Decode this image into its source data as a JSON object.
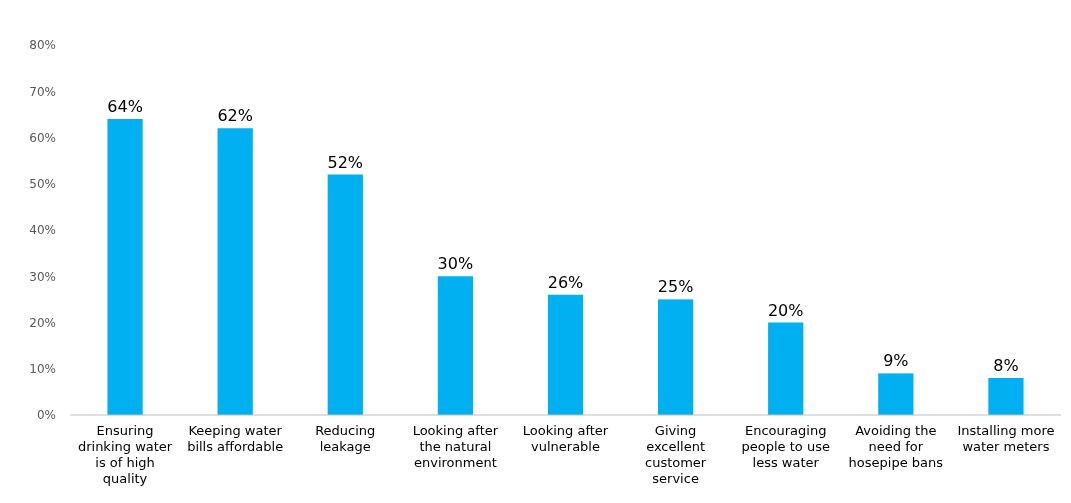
{
  "chart_data": {
    "type": "bar",
    "categories": [
      "Ensuring drinking water is of high quality",
      "Keeping water bills affordable",
      "Reducing leakage",
      "Looking after the natural environment",
      "Looking after vulnerable",
      "Giving excellent customer service",
      "Encouraging people to use less water",
      "Avoiding the need for hosepipe bans",
      "Installing more water meters"
    ],
    "values": [
      64,
      62,
      52,
      30,
      26,
      25,
      20,
      9,
      8
    ],
    "color": "#00b0f0",
    "ylim": [
      0,
      80
    ],
    "yticks": [
      {
        "value": 0,
        "label": "0%"
      },
      {
        "value": 10,
        "label": "10%"
      },
      {
        "value": 20,
        "label": "20%"
      },
      {
        "value": 30,
        "label": "30%"
      },
      {
        "value": 40,
        "label": "40%"
      },
      {
        "value": 50,
        "label": "50%"
      },
      {
        "value": 60,
        "label": "60%"
      },
      {
        "value": 70,
        "label": "70%"
      },
      {
        "value": 80,
        "label": "80%"
      }
    ],
    "value_labels": [
      "64%",
      "62%",
      "52%",
      "30%",
      "26%",
      "25%",
      "20%",
      "9%",
      "8%"
    ],
    "grid": false
  }
}
